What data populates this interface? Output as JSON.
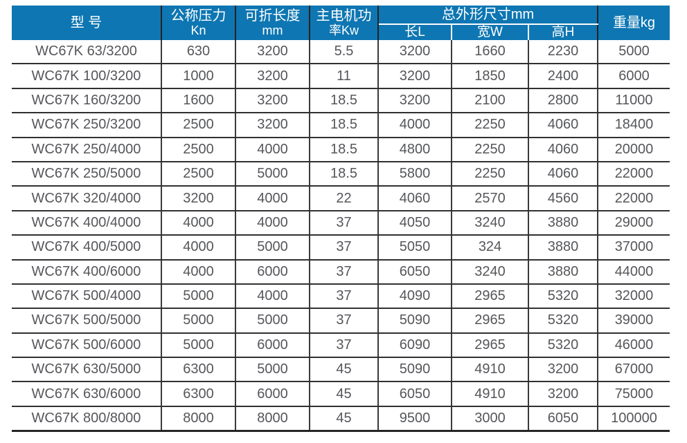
{
  "table": {
    "header": {
      "model": "型 号",
      "pressure": {
        "line1": "公称压力",
        "line2": "Kn"
      },
      "fold_length": {
        "line1": "可折长度",
        "line2": "mm"
      },
      "motor_power": {
        "line1": "主电机功",
        "line2": "率Kw"
      },
      "dimensions_group": "总外形尺寸mm",
      "dim_l": "长L",
      "dim_w": "宽W",
      "dim_h": "高H",
      "weight": "重量kg"
    },
    "colors": {
      "header_bg": "#0e76b2",
      "header_text": "#ffffff",
      "body_text": "#55565a",
      "grid_line": "#303030"
    }
  },
  "chart_data": {
    "type": "table",
    "columns": [
      "型号",
      "公称压力Kn",
      "可折长度mm",
      "主电机功率Kw",
      "总外形尺寸mm 长L",
      "总外形尺寸mm 宽W",
      "总外形尺寸mm 高H",
      "重量kg"
    ],
    "rows": [
      [
        "WC67K 63/3200",
        "630",
        "3200",
        "5.5",
        "3200",
        "1660",
        "2230",
        "5000"
      ],
      [
        "WC67K 100/3200",
        "1000",
        "3200",
        "11",
        "3200",
        "1850",
        "2400",
        "6000"
      ],
      [
        "WC67K 160/3200",
        "1600",
        "3200",
        "18.5",
        "3200",
        "2100",
        "2800",
        "11000"
      ],
      [
        "WC67K 250/3200",
        "2500",
        "3200",
        "18.5",
        "4000",
        "2250",
        "4060",
        "18400"
      ],
      [
        "WC67K 250/4000",
        "2500",
        "4000",
        "18.5",
        "4800",
        "2250",
        "4060",
        "20000"
      ],
      [
        "WC67K 250/5000",
        "2500",
        "5000",
        "18.5",
        "5800",
        "2250",
        "4060",
        "22000"
      ],
      [
        "WC67K 320/4000",
        "3200",
        "4000",
        "22",
        "4060",
        "2570",
        "4560",
        "22000"
      ],
      [
        "WC67K 400/4000",
        "4000",
        "4000",
        "37",
        "4050",
        "3240",
        "3880",
        "29000"
      ],
      [
        "WC67K 400/5000",
        "4000",
        "5000",
        "37",
        "5050",
        "324",
        "3880",
        "37000"
      ],
      [
        "WC67K 400/6000",
        "4000",
        "6000",
        "37",
        "6050",
        "3240",
        "3880",
        "44000"
      ],
      [
        "WC67K 500/4000",
        "5000",
        "4000",
        "37",
        "4090",
        "2965",
        "5320",
        "32000"
      ],
      [
        "WC67K 500/5000",
        "5000",
        "5000",
        "37",
        "5090",
        "2965",
        "5320",
        "39000"
      ],
      [
        "WC67K 500/6000",
        "5000",
        "6000",
        "37",
        "6090",
        "2965",
        "5320",
        "46000"
      ],
      [
        "WC67K 630/5000",
        "6300",
        "5000",
        "45",
        "5090",
        "4910",
        "3200",
        "67000"
      ],
      [
        "WC67K 630/6000",
        "6300",
        "6000",
        "45",
        "6050",
        "4910",
        "3200",
        "75000"
      ],
      [
        "WC67K 800/8000",
        "8000",
        "8000",
        "45",
        "9500",
        "3000",
        "6050",
        "100000"
      ]
    ]
  }
}
